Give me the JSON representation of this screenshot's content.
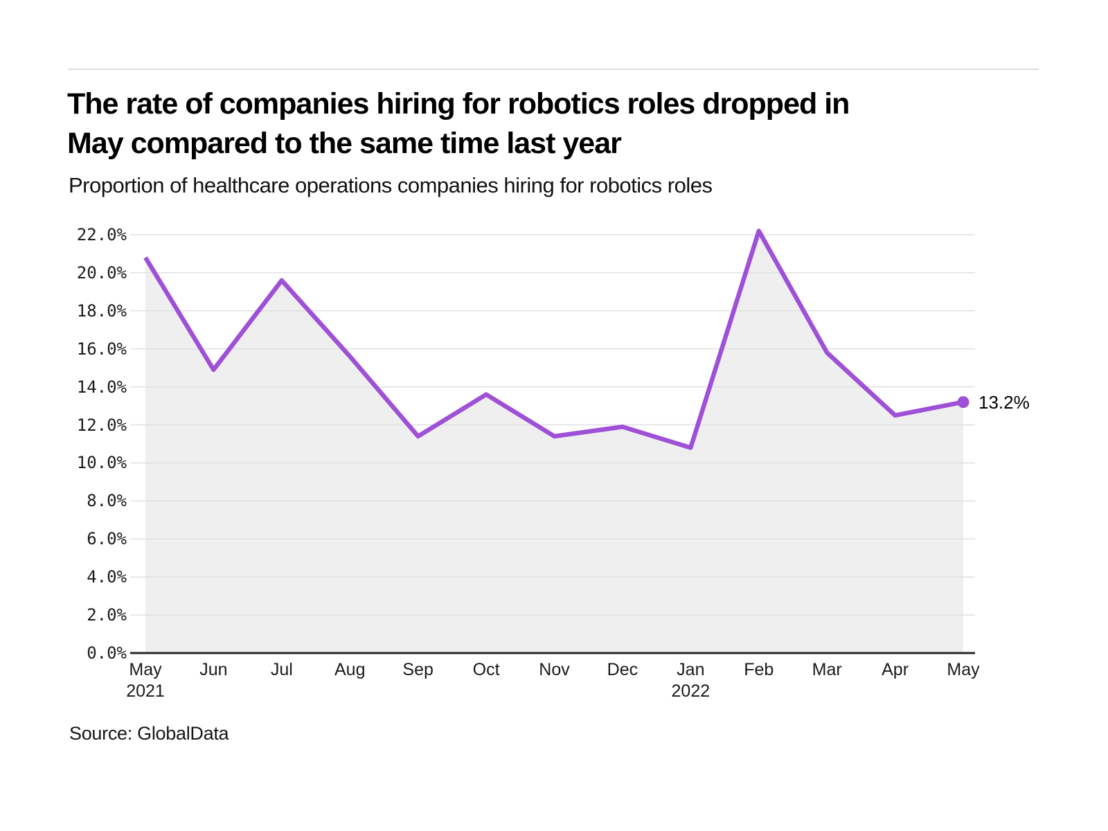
{
  "header": {
    "title_lines": [
      "The rate of companies hiring for robotics roles dropped in",
      "May compared to the same time last year"
    ],
    "subtitle": "Proportion of healthcare operations companies hiring for robotics roles"
  },
  "chart_data": {
    "type": "area",
    "categories": [
      {
        "month": "May",
        "year": "2021"
      },
      {
        "month": "Jun"
      },
      {
        "month": "Jul"
      },
      {
        "month": "Aug"
      },
      {
        "month": "Sep"
      },
      {
        "month": "Oct"
      },
      {
        "month": "Nov"
      },
      {
        "month": "Dec"
      },
      {
        "month": "Jan",
        "year": "2022"
      },
      {
        "month": "Feb"
      },
      {
        "month": "Mar"
      },
      {
        "month": "Apr"
      },
      {
        "month": "May"
      }
    ],
    "values": [
      20.8,
      14.9,
      19.6,
      15.6,
      11.4,
      13.6,
      11.4,
      11.9,
      10.8,
      22.2,
      15.8,
      12.5,
      13.2
    ],
    "unit": "%",
    "ylim": [
      0,
      22
    ],
    "ytick_step": 2,
    "ytick_labels": [
      "0.0%",
      "2.0%",
      "4.0%",
      "6.0%",
      "8.0%",
      "10.0%",
      "12.0%",
      "14.0%",
      "16.0%",
      "18.0%",
      "20.0%",
      "22.0%"
    ],
    "end_label": "13.2%",
    "grid": true,
    "legend": "none",
    "line_color": "#9e50d7",
    "marker_color": "#9e50d7",
    "area_color": "#efefef",
    "grid_color": "#e0e0e0",
    "axis_color": "#262626",
    "label_color": "#1a1a1a"
  },
  "footer": {
    "source": "Source: GlobalData"
  }
}
